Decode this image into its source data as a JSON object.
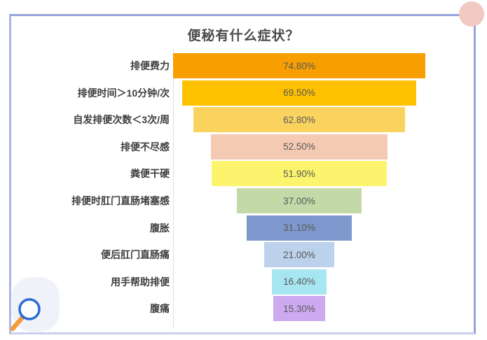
{
  "page": {
    "title": "便秘有什么症状？"
  },
  "chart_data": {
    "type": "bar",
    "subtype": "centered-funnel-horizontal",
    "title": "便秘有什么症状？",
    "categories": [
      "排便费力",
      "排便时间＞10分钟/次",
      "自发排便次数＜3次/周",
      "排便不尽感",
      "粪便干硬",
      "排便时肛门直肠堵塞感",
      "腹胀",
      "便后肛门直肠痛",
      "用手帮助排便",
      "腹痛"
    ],
    "values": [
      74.8,
      69.5,
      62.8,
      52.5,
      51.9,
      37.0,
      31.1,
      21.0,
      16.4,
      15.3
    ],
    "value_labels": [
      "74.80%",
      "69.50%",
      "62.80%",
      "52.50%",
      "51.90%",
      "37.00%",
      "31.10%",
      "21.00%",
      "16.40%",
      "15.30%"
    ],
    "bar_colors": [
      "#F79E01",
      "#FDC101",
      "#FAD35F",
      "#F5CAB3",
      "#FCF46C",
      "#C3D9A8",
      "#7D98CC",
      "#BCD2EC",
      "#A6E6F0",
      "#CDA9F0"
    ],
    "xlim": [
      0,
      80
    ],
    "grid": false,
    "legend": "none",
    "label_color": "#3D3D3D",
    "value_label_color": "#595959"
  },
  "decorations": {
    "border_color": "#97A2DD",
    "pink_circle_color": "#F2C8C3",
    "blob_color": "#F0F2FA",
    "magnifier": {
      "ring_color": "#2A6BD6",
      "handle_color": "#F59B3C",
      "joint_color": "#1E3E92"
    }
  }
}
